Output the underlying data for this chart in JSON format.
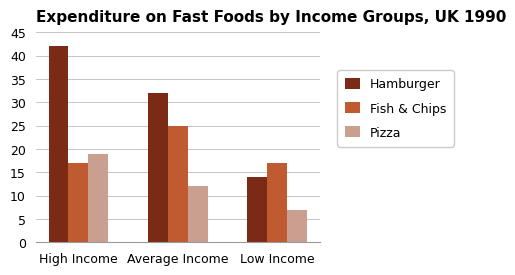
{
  "title": "Expenditure on Fast Foods by Income Groups, UK 1990",
  "categories": [
    "High Income",
    "Average Income",
    "Low Income"
  ],
  "series": [
    {
      "name": "Hamburger",
      "values": [
        42,
        32,
        14
      ],
      "color": "#7B2A15"
    },
    {
      "name": "Fish & Chips",
      "values": [
        17,
        25,
        17
      ],
      "color": "#C05A30"
    },
    {
      "name": "Pizza",
      "values": [
        19,
        12,
        7
      ],
      "color": "#C9A090"
    }
  ],
  "ylim": [
    0,
    45
  ],
  "yticks": [
    0,
    5,
    10,
    15,
    20,
    25,
    30,
    35,
    40,
    45
  ],
  "title_fontsize": 11,
  "legend_fontsize": 9,
  "tick_fontsize": 9,
  "background_color": "#ffffff",
  "bar_width": 0.2,
  "grid_color": "#bbbbbb"
}
